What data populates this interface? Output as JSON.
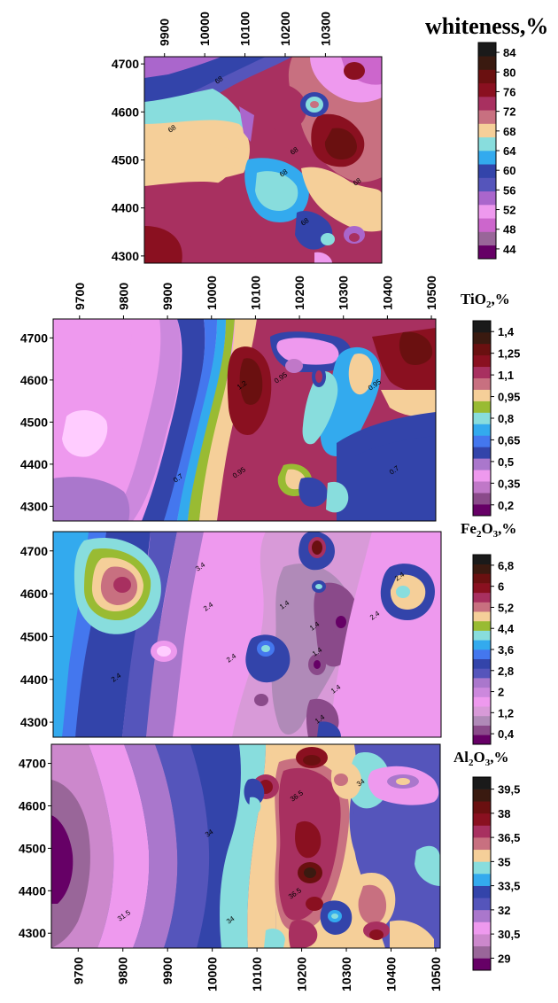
{
  "chart_data": [
    {
      "type": "heatmap",
      "title": "whiteness,%",
      "x_ticks": [
        "9900",
        "10000",
        "10100",
        "10200",
        "10300"
      ],
      "y_ticks": [
        "4700",
        "4600",
        "4500",
        "4400",
        "4300"
      ],
      "xlim": [
        9850,
        10440
      ],
      "ylim": [
        4285,
        4715
      ],
      "legend_ticks": [
        "84",
        "80",
        "76",
        "72",
        "68",
        "64",
        "60",
        "56",
        "52",
        "48",
        "44"
      ],
      "contour_labels": [
        "68",
        "68",
        "68",
        "68",
        "68",
        "68"
      ],
      "colors": [
        "#660066",
        "#996699",
        "#cc66cc",
        "#ee99ee",
        "#aa66cc",
        "#5555bb",
        "#3344aa",
        "#33aaee",
        "#88dddd",
        "#f5cf99",
        "#c87080",
        "#a83060",
        "#8a1020",
        "#6a1010",
        "#3a1a10",
        "#1a1a1a"
      ]
    },
    {
      "type": "heatmap",
      "title_main": "TiO",
      "title_sub": "2",
      "title_suffix": ",%",
      "x_ticks": [
        "9700",
        "9800",
        "9900",
        "10000",
        "10100",
        "10200",
        "10300",
        "10400",
        "10500"
      ],
      "y_ticks": [
        "4700",
        "4600",
        "4500",
        "4400",
        "4300"
      ],
      "xlim": [
        9640,
        10510
      ],
      "ylim": [
        4265,
        4745
      ],
      "legend_ticks": [
        "1,4",
        "1,25",
        "1,1",
        "0,95",
        "0,8",
        "0,65",
        "0,5",
        "0,35",
        "0,2"
      ],
      "contour_labels": [
        "0.95",
        "0.7",
        "0.95",
        "0.7",
        "1.2",
        "0.95"
      ],
      "colors": [
        "#660066",
        "#8a4a8a",
        "#c078c8",
        "#ee99ee",
        "#aa77cc",
        "#3344aa",
        "#4477ee",
        "#33aaee",
        "#88dddd",
        "#99bb33",
        "#f5cf99",
        "#c87080",
        "#a83060",
        "#8a1020",
        "#6a1010",
        "#3a1a10",
        "#1a1a1a"
      ]
    },
    {
      "type": "heatmap",
      "title_main": "Fe",
      "title_sub1": "2",
      "title_mid": "O",
      "title_sub2": "3",
      "title_suffix": ",%",
      "x_ticks": [],
      "y_ticks": [
        "4700",
        "4600",
        "4500",
        "4400",
        "4300"
      ],
      "xlim": [
        9640,
        10510
      ],
      "ylim": [
        4265,
        4745
      ],
      "legend_ticks": [
        "6,8",
        "6",
        "5,2",
        "4,4",
        "3,6",
        "2,8",
        "2",
        "1,2",
        "0,4"
      ],
      "contour_labels": [
        "3.4",
        "2.4",
        "2.4",
        "1.4",
        "1.4",
        "1.4",
        "2.4",
        "1.4",
        "2.4",
        "2.4",
        "1.4"
      ],
      "colors": [
        "#660066",
        "#8a4a8a",
        "#b08ab8",
        "#d89ad8",
        "#ee99ee",
        "#cc88dd",
        "#aa77cc",
        "#5555bb",
        "#3344aa",
        "#4477ee",
        "#33aaee",
        "#88dddd",
        "#99bb33",
        "#f5cf99",
        "#c87080",
        "#a83060",
        "#8a1020",
        "#6a1010",
        "#3a1a10",
        "#1a1a1a"
      ]
    },
    {
      "type": "heatmap",
      "title_main": "Al",
      "title_sub1": "2",
      "title_mid": "O",
      "title_sub2": "3",
      "title_suffix": ",%",
      "x_ticks": [
        "9700",
        "9800",
        "9900",
        "10000",
        "10100",
        "10200",
        "10300",
        "10400",
        "10500"
      ],
      "y_ticks": [
        "4700",
        "4600",
        "4500",
        "4400",
        "4300"
      ],
      "xlim": [
        9640,
        10510
      ],
      "ylim": [
        4265,
        4745
      ],
      "legend_ticks": [
        "39,5",
        "38",
        "36,5",
        "35",
        "33,5",
        "32",
        "30,5",
        "29"
      ],
      "contour_labels": [
        "34",
        "31.5",
        "34",
        "36.5",
        "36.5",
        "34"
      ],
      "colors": [
        "#660066",
        "#996699",
        "#cc88cc",
        "#ee99ee",
        "#aa77cc",
        "#5555bb",
        "#3344aa",
        "#33aaee",
        "#88dddd",
        "#f5cf99",
        "#c87080",
        "#a83060",
        "#8a1020",
        "#6a1010",
        "#3a1a10",
        "#1a1a1a"
      ]
    }
  ]
}
